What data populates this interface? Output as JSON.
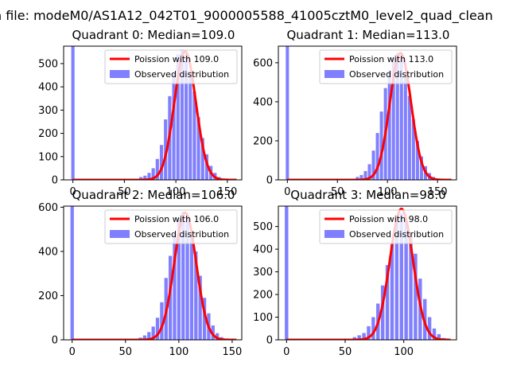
{
  "suptitle": "n file: modeM0/AS1A12_042T01_9000005588_41005cztM0_level2_quad_clean",
  "colors": {
    "bars": "#8080ff",
    "curve": "#ff0000"
  },
  "chart_data": [
    {
      "type": "bar",
      "title": "Quadrant 0: Median=109.0",
      "median": 109.0,
      "xlim": [
        -9,
        164
      ],
      "ylim": [
        0,
        575
      ],
      "xticks": [
        0,
        50,
        100,
        150
      ],
      "yticks": [
        0,
        100,
        200,
        300,
        400,
        500
      ],
      "legend": [
        "Poission with 109.0",
        "Observed distribution"
      ],
      "zero_bar_height": 575,
      "bin_width": 3.2,
      "bins_x": [
        62,
        66,
        70,
        74,
        78,
        82,
        86,
        90,
        94,
        98,
        102,
        106,
        110,
        114,
        118,
        122,
        126,
        130,
        134,
        138,
        142,
        146
      ],
      "bins_y": [
        5,
        12,
        18,
        30,
        50,
        90,
        150,
        260,
        360,
        460,
        540,
        560,
        540,
        470,
        380,
        270,
        180,
        110,
        60,
        30,
        12,
        5
      ],
      "curve_scale": 552
    },
    {
      "type": "bar",
      "title": "Quadrant 1: Median=113.0",
      "median": 113.0,
      "xlim": [
        -9,
        169
      ],
      "ylim": [
        0,
        685
      ],
      "xticks": [
        0,
        50,
        100,
        150
      ],
      "yticks": [
        0,
        200,
        400,
        600
      ],
      "legend": [
        "Poission with 113.0",
        "Observed distribution"
      ],
      "zero_bar_height": 685,
      "bin_width": 3.2,
      "bins_x": [
        66,
        70,
        74,
        78,
        82,
        86,
        90,
        94,
        98,
        102,
        106,
        110,
        114,
        118,
        122,
        126,
        130,
        134,
        138,
        142,
        146,
        150
      ],
      "bins_y": [
        5,
        15,
        25,
        45,
        80,
        150,
        240,
        350,
        470,
        560,
        630,
        650,
        620,
        530,
        430,
        310,
        200,
        120,
        70,
        35,
        15,
        5
      ],
      "curve_scale": 650
    },
    {
      "type": "bar",
      "title": "Quadrant 2: Median=106.0",
      "median": 106.0,
      "xlim": [
        -8,
        159
      ],
      "ylim": [
        0,
        605
      ],
      "xticks": [
        0,
        50,
        100,
        150
      ],
      "yticks": [
        0,
        200,
        400,
        600
      ],
      "legend": [
        "Poission with 106.0",
        "Observed distribution"
      ],
      "zero_bar_height": 605,
      "bin_width": 3.2,
      "bins_x": [
        60,
        64,
        68,
        72,
        76,
        80,
        84,
        88,
        92,
        96,
        100,
        104,
        108,
        112,
        116,
        120,
        124,
        128,
        132,
        136,
        140,
        144
      ],
      "bins_y": [
        5,
        10,
        20,
        35,
        60,
        100,
        170,
        280,
        380,
        480,
        550,
        580,
        560,
        490,
        400,
        290,
        190,
        120,
        65,
        30,
        12,
        5
      ],
      "curve_scale": 575
    },
    {
      "type": "bar",
      "title": "Quadrant 3: Median=98.0",
      "median": 98.0,
      "xlim": [
        -7,
        145
      ],
      "ylim": [
        0,
        590
      ],
      "xticks": [
        0,
        50,
        100
      ],
      "yticks": [
        0,
        100,
        200,
        300,
        400,
        500
      ],
      "legend": [
        "Poission with 98.0",
        "Observed distribution"
      ],
      "zero_bar_height": 590,
      "bin_width": 3.0,
      "bins_x": [
        54,
        58,
        62,
        66,
        70,
        74,
        78,
        82,
        86,
        90,
        94,
        98,
        102,
        106,
        110,
        114,
        118,
        122,
        126,
        130,
        134
      ],
      "bins_y": [
        5,
        12,
        20,
        30,
        60,
        100,
        160,
        240,
        330,
        420,
        520,
        560,
        520,
        470,
        380,
        270,
        180,
        100,
        50,
        25,
        8
      ],
      "curve_scale": 578
    }
  ]
}
